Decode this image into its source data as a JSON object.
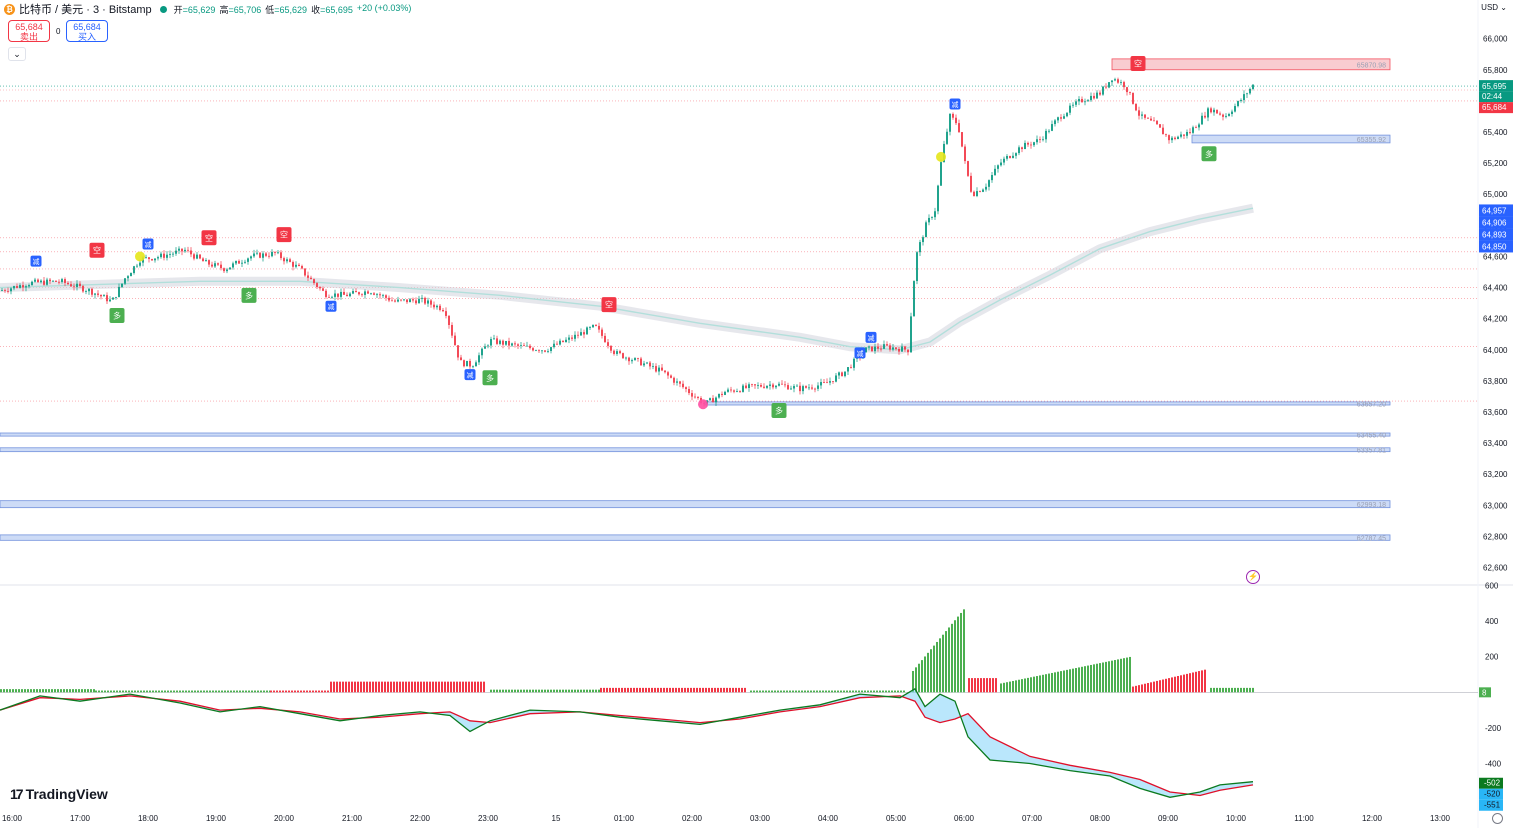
{
  "header": {
    "title": "比特币 / 美元 · 3 · Bitstamp",
    "coin_glyph": "₿",
    "ohlc": {
      "open_label": "开",
      "open": "=65,629",
      "high_label": "高",
      "high": "=65,706",
      "low_label": "低",
      "low": "=65,629",
      "close_label": "收",
      "close": "=65,695",
      "change": "+20 (+0.03%)"
    }
  },
  "trade": {
    "sell_price": "65,684",
    "sell_label": "卖出",
    "spread": "0",
    "buy_price": "65,684",
    "buy_label": "买入",
    "collapse_glyph": "⌄"
  },
  "currency_selector": "USD ⌄",
  "brand": {
    "mark": "17",
    "name": "TradingView"
  },
  "flash_glyph": "⚡",
  "colors": {
    "up": "#089981",
    "down": "#f23645",
    "grid": "#f0f3fa",
    "ma": "#b2dfdb",
    "ma_band": "#d1d4dc",
    "macd": "#0b7a1f",
    "signal": "#e0102a",
    "support_fill": "#c5d5f5",
    "support_edge": "#5b7fd6",
    "resist_fill": "#f8c4c8"
  },
  "chart_data": {
    "type": "candlestick",
    "price_axis": {
      "ticks": [
        "66,000",
        "65,800",
        "65,600",
        "65,400",
        "65,200",
        "65,000",
        "64,800",
        "64,600",
        "64,400",
        "64,200",
        "64,000",
        "63,800",
        "63,600",
        "63,400",
        "63,200",
        "63,000",
        "62,800",
        "62,600"
      ],
      "tick_values": [
        66000,
        65800,
        65600,
        65400,
        65200,
        65000,
        64800,
        64600,
        64400,
        64200,
        64000,
        63800,
        63600,
        63400,
        63200,
        63000,
        62800,
        62600
      ],
      "range": [
        62520,
        66120
      ]
    },
    "time_axis": {
      "ticks": [
        "16:00",
        "17:00",
        "18:00",
        "19:00",
        "20:00",
        "21:00",
        "22:00",
        "23:00",
        "15",
        "01:00",
        "02:00",
        "03:00",
        "04:00",
        "05:00",
        "06:00",
        "07:00",
        "08:00",
        "09:00",
        "10:00",
        "11:00",
        "12:00",
        "13:00"
      ]
    },
    "price_path": [
      [
        0,
        64380
      ],
      [
        30,
        64430
      ],
      [
        60,
        64440
      ],
      [
        90,
        64380
      ],
      [
        112,
        64310
      ],
      [
        125,
        64460
      ],
      [
        140,
        64580
      ],
      [
        160,
        64600
      ],
      [
        185,
        64640
      ],
      [
        205,
        64560
      ],
      [
        225,
        64520
      ],
      [
        250,
        64600
      ],
      [
        275,
        64620
      ],
      [
        300,
        64520
      ],
      [
        325,
        64360
      ],
      [
        345,
        64350
      ],
      [
        370,
        64380
      ],
      [
        395,
        64310
      ],
      [
        420,
        64320
      ],
      [
        445,
        64260
      ],
      [
        460,
        63920
      ],
      [
        472,
        63900
      ],
      [
        490,
        64060
      ],
      [
        520,
        64020
      ],
      [
        545,
        64000
      ],
      [
        570,
        64070
      ],
      [
        595,
        64150
      ],
      [
        615,
        63980
      ],
      [
        640,
        63920
      ],
      [
        662,
        63860
      ],
      [
        685,
        63750
      ],
      [
        705,
        63650
      ],
      [
        725,
        63730
      ],
      [
        750,
        63760
      ],
      [
        775,
        63780
      ],
      [
        800,
        63750
      ],
      [
        825,
        63780
      ],
      [
        845,
        63860
      ],
      [
        865,
        64000
      ],
      [
        885,
        64020
      ],
      [
        908,
        64000
      ],
      [
        916,
        64600
      ],
      [
        926,
        64800
      ],
      [
        935,
        64900
      ],
      [
        942,
        65250
      ],
      [
        950,
        65500
      ],
      [
        958,
        65450
      ],
      [
        965,
        65200
      ],
      [
        972,
        65000
      ],
      [
        985,
        65050
      ],
      [
        1000,
        65200
      ],
      [
        1020,
        65300
      ],
      [
        1040,
        65350
      ],
      [
        1060,
        65500
      ],
      [
        1080,
        65600
      ],
      [
        1100,
        65650
      ],
      [
        1112,
        65750
      ],
      [
        1125,
        65700
      ],
      [
        1140,
        65500
      ],
      [
        1155,
        65450
      ],
      [
        1170,
        65350
      ],
      [
        1190,
        65400
      ],
      [
        1210,
        65550
      ],
      [
        1225,
        65500
      ],
      [
        1240,
        65600
      ],
      [
        1253,
        65700
      ]
    ],
    "ma_path": [
      [
        0,
        64400
      ],
      [
        100,
        64420
      ],
      [
        200,
        64440
      ],
      [
        300,
        64440
      ],
      [
        400,
        64400
      ],
      [
        500,
        64350
      ],
      [
        600,
        64280
      ],
      [
        700,
        64170
      ],
      [
        800,
        64080
      ],
      [
        850,
        64020
      ],
      [
        900,
        64000
      ],
      [
        930,
        64050
      ],
      [
        960,
        64180
      ],
      [
        1000,
        64320
      ],
      [
        1050,
        64480
      ],
      [
        1100,
        64650
      ],
      [
        1150,
        64760
      ],
      [
        1200,
        64840
      ],
      [
        1253,
        64910
      ]
    ],
    "current_price": {
      "price": 65695,
      "price_label": "65,695",
      "countdown": "02:44",
      "bid_label": "65,684"
    },
    "ma_labels": [
      "64,957",
      "64,906",
      "64,893",
      "64,850"
    ],
    "horizontal_dotted_levels": [
      65670,
      65600,
      64720,
      64630,
      64520,
      64400,
      64330,
      64020,
      63670
    ],
    "zones": [
      {
        "kind": "resistance",
        "top": 65870,
        "bottom": 65800,
        "x_start": 1112,
        "label": "65870.98"
      },
      {
        "kind": "support",
        "top": 65380,
        "bottom": 65330,
        "x_start": 1192,
        "label": "65355.92"
      },
      {
        "kind": "support",
        "top": 63665,
        "bottom": 63645,
        "x_start": 705,
        "label": "63657.20"
      },
      {
        "kind": "support",
        "top": 63465,
        "bottom": 63445,
        "x_start": 0,
        "label": "63455.40"
      },
      {
        "kind": "support",
        "top": 63370,
        "bottom": 63345,
        "x_start": 0,
        "label": "63357.81"
      },
      {
        "kind": "support",
        "top": 63030,
        "bottom": 62985,
        "x_start": 0,
        "label": "62993.18"
      },
      {
        "kind": "support",
        "top": 62810,
        "bottom": 62775,
        "x_start": 0,
        "label": "62787.45"
      }
    ],
    "signals": [
      {
        "text": "减",
        "kind": "reduce",
        "x": 36,
        "price": 64570
      },
      {
        "text": "空",
        "kind": "short",
        "x": 97,
        "price": 64640
      },
      {
        "text": "多",
        "kind": "long",
        "x": 117,
        "price": 64220
      },
      {
        "text": "减",
        "kind": "reduce",
        "x": 148,
        "price": 64680
      },
      {
        "text": "空",
        "kind": "short",
        "x": 209,
        "price": 64720
      },
      {
        "text": "多",
        "kind": "long",
        "x": 249,
        "price": 64350
      },
      {
        "text": "空",
        "kind": "short",
        "x": 284,
        "price": 64740
      },
      {
        "text": "减",
        "kind": "reduce",
        "x": 331,
        "price": 64280
      },
      {
        "text": "空",
        "kind": "short",
        "x": 609,
        "price": 64290
      },
      {
        "text": "减",
        "kind": "reduce",
        "x": 470,
        "price": 63840
      },
      {
        "text": "多",
        "kind": "long",
        "x": 490,
        "price": 63820
      },
      {
        "text": "多",
        "kind": "long",
        "x": 779,
        "price": 63610
      },
      {
        "text": "减",
        "kind": "reduce",
        "x": 860,
        "price": 63980
      },
      {
        "text": "减",
        "kind": "reduce",
        "x": 871,
        "price": 64080
      },
      {
        "text": "减",
        "kind": "reduce",
        "x": 955,
        "price": 65580
      },
      {
        "text": "空",
        "kind": "short",
        "x": 1138,
        "price": 65840
      },
      {
        "text": "多",
        "kind": "long",
        "x": 1209,
        "price": 65260
      }
    ],
    "dots": [
      {
        "x": 140,
        "price": 64600,
        "color": "#e6e61a"
      },
      {
        "x": 703,
        "price": 63650,
        "color": "#ff4fa3"
      },
      {
        "x": 941,
        "price": 65240,
        "color": "#e6e61a"
      }
    ],
    "macd": {
      "axis_ticks": [
        "600",
        "400",
        "200",
        "-200",
        "-400"
      ],
      "axis_values": [
        600,
        400,
        200,
        -200,
        -400
      ],
      "range": [
        -650,
        620
      ],
      "labels": [
        "-502",
        "-520",
        "-551"
      ],
      "zero_label": "8",
      "histogram_blocks": [
        {
          "x0": 0,
          "x1": 95,
          "h": 18,
          "c": "up"
        },
        {
          "x0": 95,
          "x1": 270,
          "h": 10,
          "c": "up"
        },
        {
          "x0": 270,
          "x1": 330,
          "h": 10,
          "c": "down"
        },
        {
          "x0": 330,
          "x1": 485,
          "h": 60,
          "c": "down"
        },
        {
          "x0": 490,
          "x1": 600,
          "h": 15,
          "c": "up"
        },
        {
          "x0": 600,
          "x1": 745,
          "h": 25,
          "c": "down"
        },
        {
          "x0": 750,
          "x1": 905,
          "h": 10,
          "c": "up"
        },
        {
          "x0": 912,
          "x1": 965,
          "h": 480,
          "c": "up",
          "ramp": true
        },
        {
          "x0": 968,
          "x1": 997,
          "h": 80,
          "c": "down"
        },
        {
          "x0": 1000,
          "x1": 1130,
          "h": 200,
          "c": "up",
          "ramp": true
        },
        {
          "x0": 1132,
          "x1": 1206,
          "h": 130,
          "c": "down",
          "ramp": true
        },
        {
          "x0": 1210,
          "x1": 1253,
          "h": 25,
          "c": "up"
        }
      ],
      "macd_path": [
        [
          0,
          -100
        ],
        [
          40,
          -20
        ],
        [
          80,
          -50
        ],
        [
          130,
          -10
        ],
        [
          180,
          -60
        ],
        [
          220,
          -110
        ],
        [
          260,
          -80
        ],
        [
          300,
          -120
        ],
        [
          340,
          -160
        ],
        [
          380,
          -130
        ],
        [
          420,
          -110
        ],
        [
          450,
          -130
        ],
        [
          470,
          -220
        ],
        [
          490,
          -160
        ],
        [
          530,
          -100
        ],
        [
          580,
          -110
        ],
        [
          620,
          -140
        ],
        [
          660,
          -160
        ],
        [
          700,
          -180
        ],
        [
          740,
          -140
        ],
        [
          780,
          -100
        ],
        [
          820,
          -70
        ],
        [
          860,
          -10
        ],
        [
          900,
          -30
        ],
        [
          915,
          20
        ],
        [
          925,
          -80
        ],
        [
          940,
          -10
        ],
        [
          955,
          -50
        ],
        [
          968,
          -250
        ],
        [
          990,
          -380
        ],
        [
          1030,
          -400
        ],
        [
          1070,
          -440
        ],
        [
          1110,
          -470
        ],
        [
          1140,
          -540
        ],
        [
          1170,
          -590
        ],
        [
          1200,
          -560
        ],
        [
          1220,
          -520
        ],
        [
          1253,
          -502
        ]
      ],
      "signal_path": [
        [
          0,
          -100
        ],
        [
          40,
          -30
        ],
        [
          80,
          -40
        ],
        [
          130,
          -20
        ],
        [
          180,
          -50
        ],
        [
          220,
          -100
        ],
        [
          260,
          -90
        ],
        [
          300,
          -110
        ],
        [
          340,
          -150
        ],
        [
          380,
          -140
        ],
        [
          420,
          -120
        ],
        [
          450,
          -110
        ],
        [
          470,
          -160
        ],
        [
          490,
          -170
        ],
        [
          530,
          -120
        ],
        [
          580,
          -110
        ],
        [
          620,
          -130
        ],
        [
          660,
          -150
        ],
        [
          700,
          -170
        ],
        [
          740,
          -150
        ],
        [
          780,
          -110
        ],
        [
          820,
          -80
        ],
        [
          860,
          -30
        ],
        [
          900,
          -20
        ],
        [
          915,
          -50
        ],
        [
          925,
          -140
        ],
        [
          940,
          -170
        ],
        [
          955,
          -150
        ],
        [
          968,
          -120
        ],
        [
          990,
          -250
        ],
        [
          1030,
          -360
        ],
        [
          1070,
          -410
        ],
        [
          1110,
          -450
        ],
        [
          1140,
          -490
        ],
        [
          1170,
          -560
        ],
        [
          1200,
          -580
        ],
        [
          1220,
          -550
        ],
        [
          1253,
          -520
        ]
      ]
    }
  }
}
